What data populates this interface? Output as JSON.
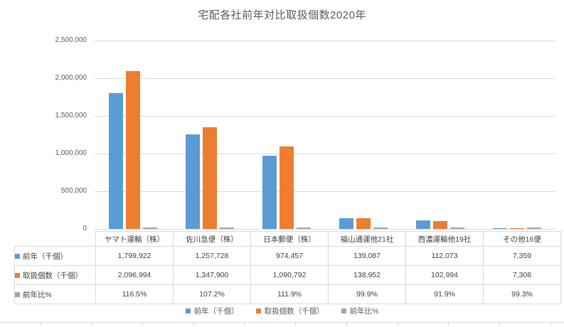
{
  "title": "宅配各社前年対比取扱個数2020年",
  "chart_data": {
    "type": "bar",
    "title": "宅配各社前年対比取扱個数2020年",
    "categories": [
      "ヤマト運輸（株）",
      "佐川急便（株）",
      "日本郵便（株）",
      "福山通運他21社",
      "西濃運輸他19社",
      "その他16便"
    ],
    "series": [
      {
        "name": "前年（千個）",
        "color": "#5B9BD5",
        "values": [
          1799922,
          1257728,
          974457,
          139087,
          112073,
          7359
        ]
      },
      {
        "name": "取扱個数（千個）",
        "color": "#ED7D31",
        "values": [
          2096994,
          1347900,
          1090792,
          138952,
          102994,
          7308
        ]
      },
      {
        "name": "前年比%",
        "color": "#A5A5A5",
        "values": [
          116.5,
          107.2,
          111.9,
          99.9,
          91.9,
          99.3
        ]
      }
    ],
    "ylim": [
      0,
      2500000
    ],
    "ytick_step": 500000,
    "ytick_labels": [
      "0",
      "500,000",
      "1,000,000",
      "1,500,000",
      "2,000,000",
      "2,500,000"
    ],
    "grid": true,
    "legend_position": "bottom"
  },
  "table": {
    "corner_label": "",
    "rows": [
      {
        "label": "前年（千個）",
        "key_color": "#5B9BD5",
        "cells": [
          "1,799,922",
          "1,257,728",
          "974,457",
          "139,087",
          "112,073",
          "7,359"
        ]
      },
      {
        "label": "取扱個数（千個）",
        "key_color": "#ED7D31",
        "cells": [
          "2,096,994",
          "1,347,900",
          "1,090,792",
          "138,952",
          "102,994",
          "7,308"
        ]
      },
      {
        "label": "前年比%",
        "key_color": "#A5A5A5",
        "cells": [
          "116.5%",
          "107.2%",
          "111.9%",
          "99.9%",
          "91.9%",
          "99.3%"
        ]
      }
    ]
  },
  "legend": {
    "items": [
      {
        "label": "前年（千個）",
        "color": "#5B9BD5"
      },
      {
        "label": "取扱個数（千個）",
        "color": "#ED7D31"
      },
      {
        "label": "前年比%",
        "color": "#A5A5A5"
      }
    ]
  },
  "colors": {
    "series_blue": "#5B9BD5",
    "series_orange": "#ED7D31",
    "series_gray": "#A5A5A5",
    "gridline": "#D9D9D9",
    "title_text": "#595959",
    "table_text": "#404040"
  }
}
